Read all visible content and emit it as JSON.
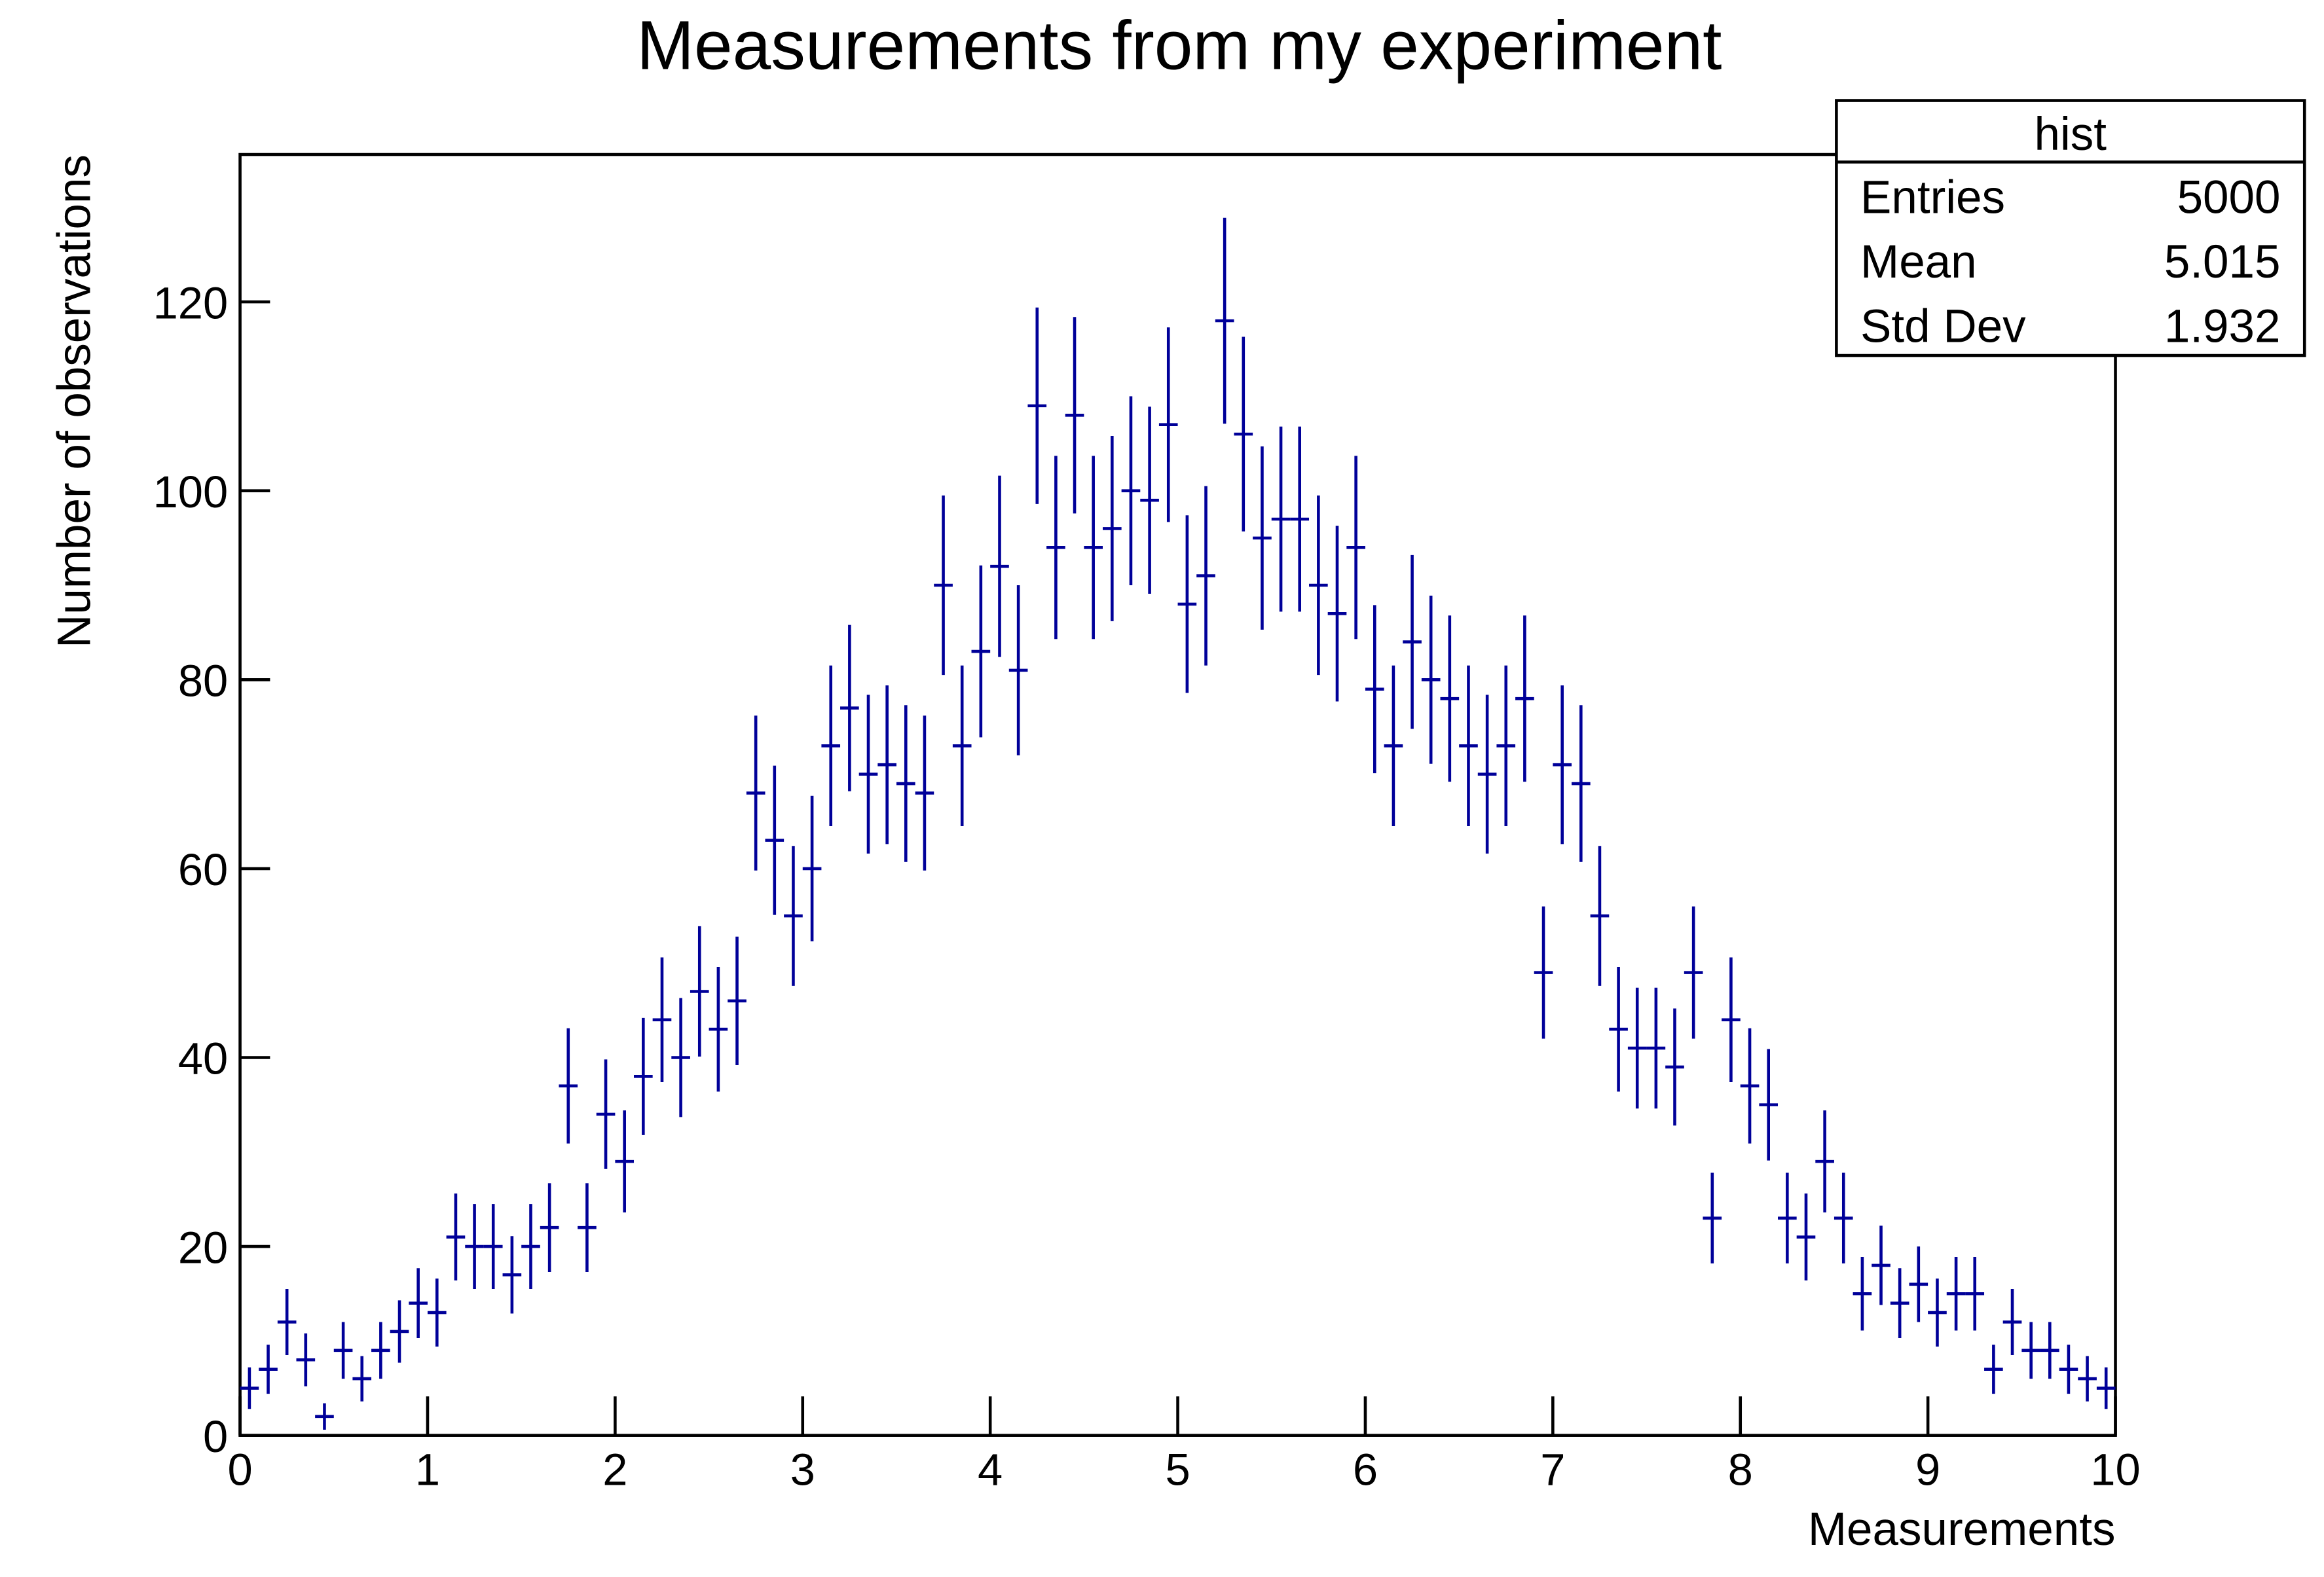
{
  "chart_data": {
    "type": "histogram",
    "title": "Measurements from my experiment",
    "x_label": "Measurements",
    "y_label": "Number of observations",
    "bins": [
      0,
      0.1,
      0.2,
      0.3,
      0.4,
      0.5,
      0.6,
      0.7,
      0.8,
      0.9,
      1,
      1.1,
      1.2,
      1.3,
      1.4,
      1.5,
      1.6,
      1.7,
      1.8,
      1.9,
      2,
      2.1,
      2.2,
      2.3,
      2.4,
      2.5,
      2.6,
      2.7,
      2.8,
      2.9,
      3,
      3.1,
      3.2,
      3.3,
      3.4,
      3.5,
      3.6,
      3.7,
      3.8,
      3.9,
      4,
      4.1,
      4.2,
      4.3,
      4.4,
      4.5,
      4.6,
      4.7,
      4.8,
      4.9,
      5,
      5.1,
      5.2,
      5.3,
      5.4,
      5.5,
      5.6,
      5.7,
      5.8,
      5.9,
      6,
      6.1,
      6.2,
      6.3,
      6.4,
      6.5,
      6.6,
      6.7,
      6.8,
      6.9,
      7,
      7.1,
      7.2,
      7.3,
      7.4,
      7.5,
      7.6,
      7.7,
      7.8,
      7.9,
      8,
      8.1,
      8.2,
      8.3,
      8.4,
      8.5,
      8.6,
      8.7,
      8.8,
      8.9,
      9,
      9.1,
      9.2,
      9.3,
      9.4,
      9.5,
      9.6,
      9.7,
      9.8,
      9.9,
      10
    ],
    "values": [
      5,
      7,
      12,
      8,
      2,
      9,
      6,
      9,
      11,
      14,
      13,
      21,
      20,
      20,
      17,
      20,
      22,
      37,
      22,
      34,
      29,
      38,
      44,
      40,
      47,
      43,
      46,
      68,
      63,
      55,
      60,
      73,
      77,
      70,
      71,
      69,
      68,
      90,
      73,
      83,
      92,
      81,
      109,
      94,
      108,
      94,
      96,
      100,
      99,
      107,
      88,
      91,
      118,
      106,
      95,
      97,
      97,
      90,
      87,
      94,
      79,
      73,
      84,
      80,
      78,
      73,
      70,
      73,
      78,
      49,
      71,
      69,
      55,
      43,
      41,
      41,
      39,
      49,
      23,
      44,
      37,
      35,
      23,
      21,
      29,
      23,
      15,
      18,
      14,
      16,
      13,
      15,
      15,
      7,
      12,
      9,
      9,
      7,
      6,
      5
    ],
    "errors": [
      2.2,
      2.6,
      3.5,
      2.8,
      1.4,
      3.0,
      2.4,
      3.0,
      3.3,
      3.7,
      3.6,
      4.6,
      4.5,
      4.5,
      4.1,
      4.5,
      4.7,
      6.1,
      4.7,
      5.8,
      5.4,
      6.2,
      6.6,
      6.3,
      6.9,
      6.6,
      6.8,
      8.2,
      7.9,
      7.4,
      7.7,
      8.5,
      8.8,
      8.4,
      8.4,
      8.3,
      8.2,
      9.5,
      8.5,
      9.1,
      9.6,
      9.0,
      10.4,
      9.7,
      10.4,
      9.7,
      9.8,
      10.0,
      9.9,
      10.3,
      9.4,
      9.5,
      10.9,
      10.3,
      9.7,
      9.8,
      9.8,
      9.5,
      9.3,
      9.7,
      8.9,
      8.5,
      9.2,
      8.9,
      8.8,
      8.5,
      8.4,
      8.5,
      8.8,
      7.0,
      8.4,
      8.3,
      7.4,
      6.6,
      6.4,
      6.4,
      6.2,
      7.0,
      4.8,
      6.6,
      6.1,
      5.9,
      4.8,
      4.6,
      5.4,
      4.8,
      3.9,
      4.2,
      3.7,
      4.0,
      3.6,
      3.9,
      3.9,
      2.6,
      3.5,
      3.0,
      3.0,
      2.6,
      2.4,
      2.2
    ],
    "color": "#000099",
    "xlim": [
      0,
      10
    ],
    "xticks": [
      0,
      1,
      2,
      3,
      4,
      5,
      6,
      7,
      8,
      9,
      10
    ],
    "ylim": [
      0,
      135.6
    ],
    "yticks": [
      0,
      20,
      40,
      60,
      80,
      100,
      120
    ],
    "stats": {
      "title": "hist",
      "rows": [
        [
          "Entries",
          "5000"
        ],
        [
          "Mean",
          "5.015"
        ],
        [
          "Std Dev",
          "1.932"
        ]
      ]
    }
  }
}
